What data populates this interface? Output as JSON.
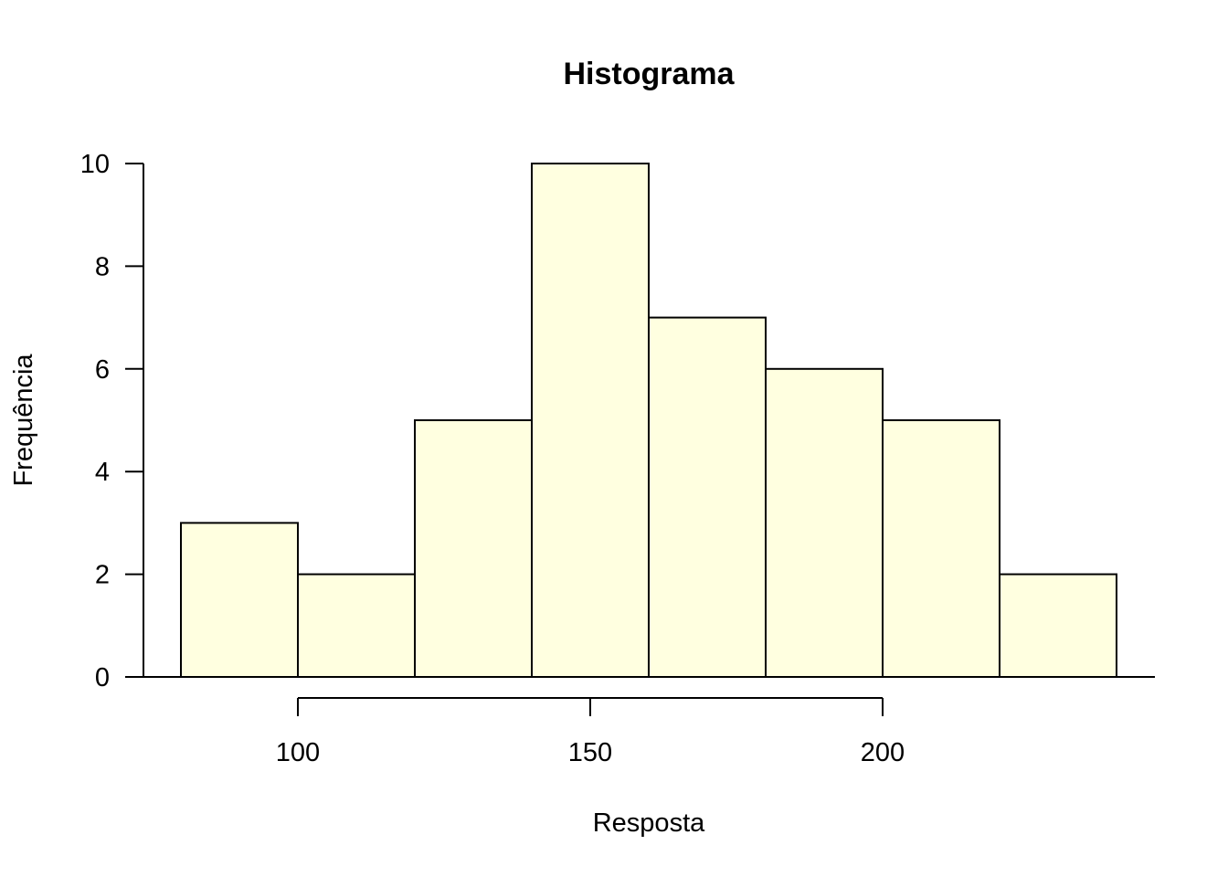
{
  "chart_data": {
    "type": "bar",
    "title": "Histograma",
    "xlabel": "Resposta",
    "ylabel": "Frequência",
    "bins": [
      {
        "start": 80,
        "end": 100,
        "count": 3
      },
      {
        "start": 100,
        "end": 120,
        "count": 2
      },
      {
        "start": 120,
        "end": 140,
        "count": 5
      },
      {
        "start": 140,
        "end": 160,
        "count": 10
      },
      {
        "start": 160,
        "end": 180,
        "count": 7
      },
      {
        "start": 180,
        "end": 200,
        "count": 6
      },
      {
        "start": 200,
        "end": 220,
        "count": 5
      },
      {
        "start": 220,
        "end": 240,
        "count": 2
      }
    ],
    "x_ticks": [
      100,
      150,
      200
    ],
    "x_tick_labels": [
      "100",
      "150",
      "200"
    ],
    "y_ticks": [
      0,
      2,
      4,
      6,
      8,
      10
    ],
    "y_tick_labels": [
      "0",
      "2",
      "4",
      "6",
      "8",
      "10"
    ],
    "xlim": [
      80,
      240
    ],
    "ylim": [
      0,
      10
    ],
    "grid": false,
    "bar_color": "#FFFFE0",
    "edge_color": "#000000"
  }
}
